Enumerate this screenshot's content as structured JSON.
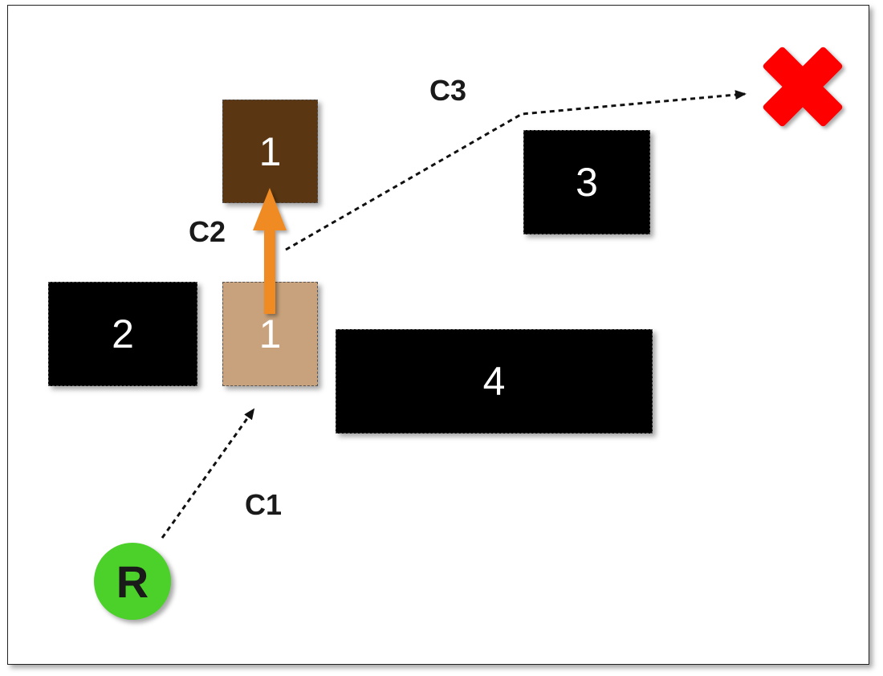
{
  "blocks": [
    {
      "id": "block-1-target",
      "label": "1",
      "color": "#5a3712"
    },
    {
      "id": "block-3",
      "label": "3",
      "color": "#000000"
    },
    {
      "id": "block-2",
      "label": "2",
      "color": "#000000"
    },
    {
      "id": "block-1-start",
      "label": "1",
      "color": "#c8a27c"
    },
    {
      "id": "block-4",
      "label": "4",
      "color": "#000000"
    }
  ],
  "labels": {
    "c1": "C1",
    "c2": "C2",
    "c3": "C3"
  },
  "robot": {
    "label": "R",
    "color": "#4cd12a"
  },
  "colors": {
    "arrow": "#f08a24",
    "goal_marker": "#ff0000",
    "path": "#111111"
  },
  "icons": {
    "goal": "red-x-icon",
    "move": "orange-up-arrow-icon"
  }
}
